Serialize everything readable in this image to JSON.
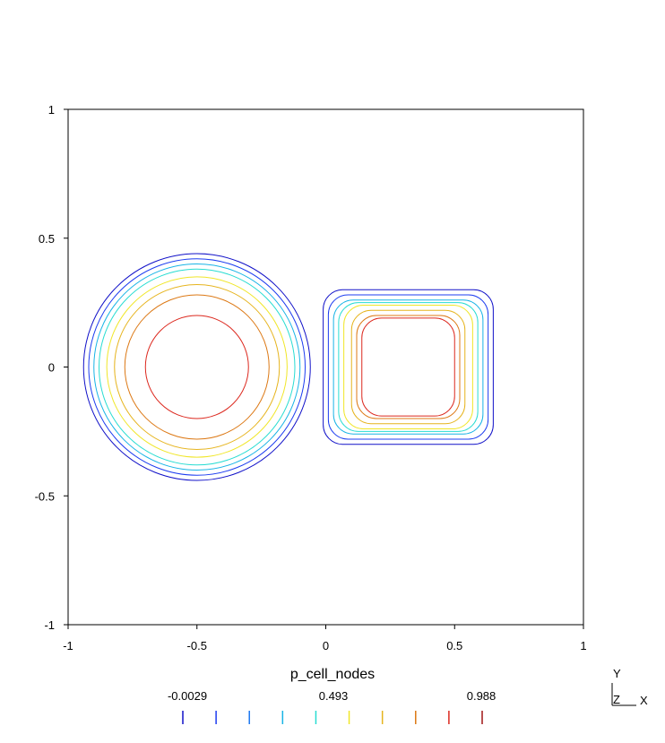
{
  "chart_data": {
    "type": "contour",
    "xlim": [
      -1,
      1
    ],
    "ylim": [
      -1,
      1
    ],
    "x_ticks": [
      -1,
      -0.5,
      0,
      0.5,
      1
    ],
    "x_tick_labels": [
      "-1",
      "-0.5",
      "0",
      "0.5",
      "1"
    ],
    "y_ticks": [
      -1,
      -0.5,
      0,
      0.5,
      1
    ],
    "y_tick_labels": [
      "-1",
      "-0.5",
      "0",
      "0.5",
      "1"
    ],
    "grid": false,
    "legend": {
      "title": "p_cell_nodes",
      "labels": [
        "-0.0029",
        "0.493",
        "0.988"
      ],
      "min": -0.0029,
      "max": 0.988,
      "placement": "bottom",
      "colors": [
        "#1010c8",
        "#1c3cf0",
        "#1e78f0",
        "#18b4e6",
        "#28dcd2",
        "#f0e628",
        "#e6b41e",
        "#dc7814",
        "#dc281e",
        "#a01414"
      ]
    },
    "contours": [
      {
        "shape": "circle",
        "center": [
          -0.5,
          0
        ],
        "levels": [
          {
            "level": 0,
            "radius": 0.44,
            "color": "#1010c8"
          },
          {
            "level": 1,
            "radius": 0.42,
            "color": "#1c3cf0"
          },
          {
            "level": 2,
            "radius": 0.4,
            "color": "#18b4e6"
          },
          {
            "level": 3,
            "radius": 0.38,
            "color": "#28dcd2"
          },
          {
            "level": 4,
            "radius": 0.35,
            "color": "#f0e628"
          },
          {
            "level": 5,
            "radius": 0.32,
            "color": "#e6b41e"
          },
          {
            "level": 6,
            "radius": 0.28,
            "color": "#dc7814"
          },
          {
            "level": 7,
            "radius": 0.2,
            "color": "#dc281e"
          }
        ]
      },
      {
        "shape": "square",
        "center": [
          0.32,
          0
        ],
        "levels": [
          {
            "level": 0,
            "half_width": 0.33,
            "half_height": 0.3,
            "color": "#1010c8"
          },
          {
            "level": 1,
            "half_width": 0.31,
            "half_height": 0.28,
            "color": "#1c3cf0"
          },
          {
            "level": 2,
            "half_width": 0.29,
            "half_height": 0.26,
            "color": "#18b4e6"
          },
          {
            "level": 3,
            "half_width": 0.27,
            "half_height": 0.25,
            "color": "#28dcd2"
          },
          {
            "level": 4,
            "half_width": 0.25,
            "half_height": 0.24,
            "color": "#f0e628"
          },
          {
            "level": 5,
            "half_width": 0.22,
            "half_height": 0.22,
            "color": "#e6b41e"
          },
          {
            "level": 6,
            "half_width": 0.2,
            "half_height": 0.2,
            "color": "#dc7814"
          },
          {
            "level": 7,
            "half_width": 0.18,
            "half_height": 0.19,
            "color": "#dc281e"
          }
        ]
      }
    ]
  },
  "orientation": {
    "y": "Y",
    "z": "Z",
    "x": "X"
  }
}
